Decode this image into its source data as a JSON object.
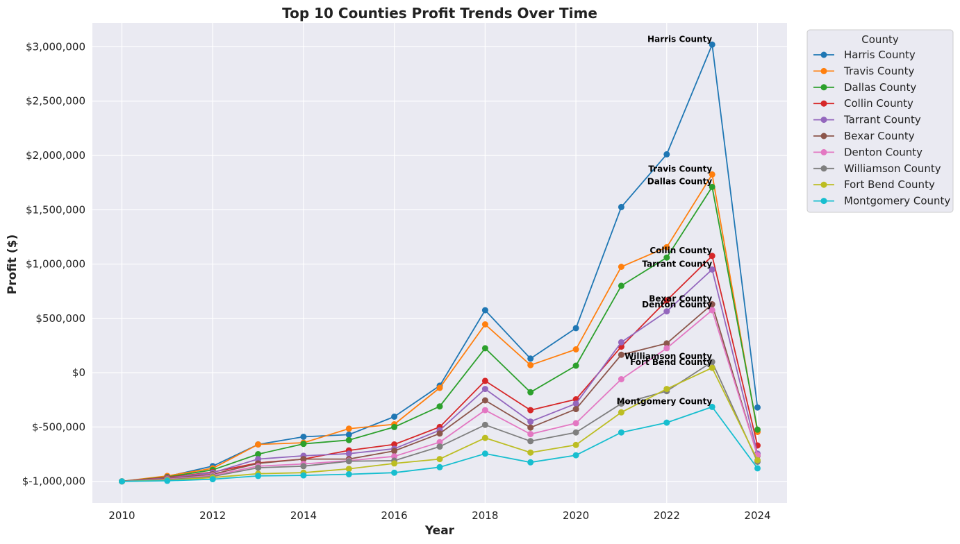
{
  "chart_data": {
    "type": "line",
    "title": "Top 10 Counties Profit Trends Over Time",
    "xlabel": "Year",
    "ylabel": "Profit ($)",
    "x": [
      2010,
      2011,
      2012,
      2013,
      2014,
      2015,
      2016,
      2017,
      2018,
      2019,
      2020,
      2021,
      2022,
      2023,
      2024
    ],
    "xlim": [
      2009.35,
      2024.65
    ],
    "ylim": [
      -1200000,
      3220000
    ],
    "x_ticks": [
      2010,
      2012,
      2014,
      2016,
      2018,
      2020,
      2022,
      2024
    ],
    "y_ticks": [
      -1000000,
      -500000,
      0,
      500000,
      1000000,
      1500000,
      2000000,
      2500000,
      3000000
    ],
    "y_tick_labels": [
      "$-1,000,000",
      "$-500,000",
      "$0",
      "$500,000",
      "$1,000,000",
      "$1,500,000",
      "$2,000,000",
      "$2,500,000",
      "$3,000,000"
    ],
    "grid": true,
    "legend": {
      "title": "County",
      "placement": "outside-right-top"
    },
    "series": [
      {
        "name": "Harris County",
        "color": "#1f77b4",
        "values": [
          -1000000,
          -955000,
          -860000,
          -660000,
          -590000,
          -570000,
          -405000,
          -120000,
          575000,
          130000,
          410000,
          1525000,
          2010000,
          3020000,
          -320000
        ]
      },
      {
        "name": "Travis County",
        "color": "#ff7f0e",
        "values": [
          -1000000,
          -950000,
          -880000,
          -660000,
          -645000,
          -515000,
          -475000,
          -140000,
          445000,
          70000,
          215000,
          975000,
          1155000,
          1825000,
          -545000
        ]
      },
      {
        "name": "Dallas County",
        "color": "#2ca02c",
        "values": [
          -1000000,
          -960000,
          -895000,
          -750000,
          -655000,
          -620000,
          -500000,
          -310000,
          225000,
          -180000,
          65000,
          800000,
          1060000,
          1710000,
          -525000
        ]
      },
      {
        "name": "Collin County",
        "color": "#d62728",
        "values": [
          -1000000,
          -965000,
          -915000,
          -830000,
          -795000,
          -715000,
          -660000,
          -500000,
          -75000,
          -345000,
          -245000,
          240000,
          665000,
          1075000,
          -670000
        ]
      },
      {
        "name": "Tarrant County",
        "color": "#9467bd",
        "values": [
          -1000000,
          -970000,
          -920000,
          -795000,
          -765000,
          -745000,
          -700000,
          -530000,
          -150000,
          -450000,
          -285000,
          280000,
          565000,
          950000,
          -745000
        ]
      },
      {
        "name": "Bexar County",
        "color": "#8c564b",
        "values": [
          -1000000,
          -975000,
          -935000,
          -835000,
          -795000,
          -795000,
          -720000,
          -560000,
          -255000,
          -505000,
          -335000,
          165000,
          270000,
          630000,
          -765000
        ]
      },
      {
        "name": "Denton County",
        "color": "#e377c2",
        "values": [
          -1000000,
          -980000,
          -945000,
          -860000,
          -840000,
          -810000,
          -770000,
          -640000,
          -345000,
          -565000,
          -465000,
          -60000,
          225000,
          575000,
          -760000
        ]
      },
      {
        "name": "Williamson County",
        "color": "#7f7f7f",
        "values": [
          -1000000,
          -985000,
          -955000,
          -875000,
          -860000,
          -815000,
          -810000,
          -680000,
          -480000,
          -630000,
          -550000,
          -285000,
          -170000,
          100000,
          -820000
        ]
      },
      {
        "name": "Fort Bend County",
        "color": "#bcbd22",
        "values": [
          -1000000,
          -990000,
          -965000,
          -930000,
          -920000,
          -885000,
          -835000,
          -795000,
          -600000,
          -735000,
          -665000,
          -365000,
          -150000,
          45000,
          -805000
        ]
      },
      {
        "name": "Montgomery County",
        "color": "#17becf",
        "values": [
          -1000000,
          -995000,
          -980000,
          -950000,
          -945000,
          -935000,
          -920000,
          -870000,
          -745000,
          -825000,
          -760000,
          -550000,
          -460000,
          -315000,
          -880000
        ]
      }
    ]
  }
}
